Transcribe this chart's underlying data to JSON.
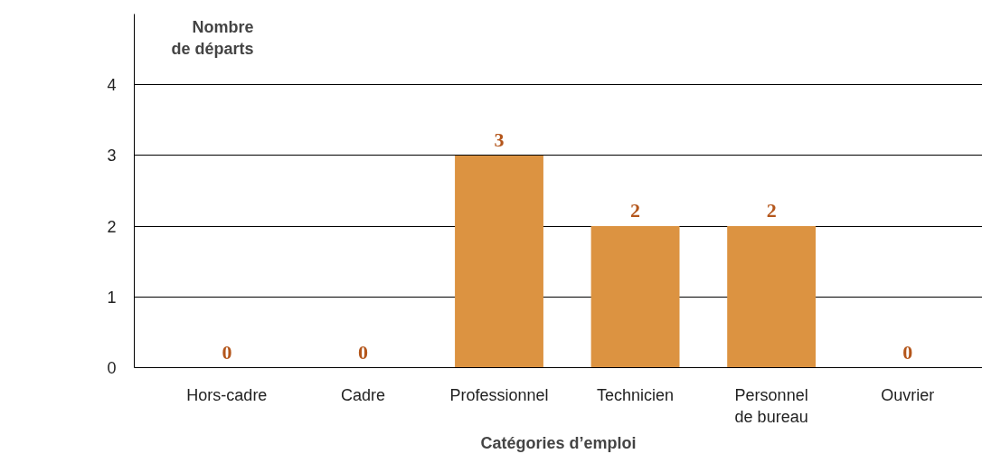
{
  "chart_data": {
    "type": "bar",
    "xlabel": "Catégories d’emploi",
    "ylabel": "Nombre\nde départs",
    "categories": [
      "Hors-cadre",
      "Cadre",
      "Professionnel",
      "Technicien",
      "Personnel\nde bureau",
      "Ouvrier"
    ],
    "values": [
      0,
      0,
      3,
      2,
      2,
      0
    ],
    "color": "#dc9341",
    "ylim": [
      0,
      5
    ],
    "yticks": [
      0,
      1,
      2,
      3,
      4
    ],
    "grid": "y",
    "data_labels": true
  }
}
